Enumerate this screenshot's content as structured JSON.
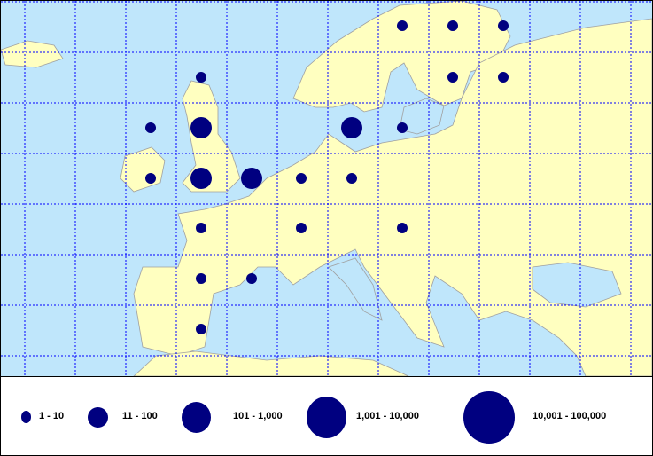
{
  "colors": {
    "sea": "#bfe6fb",
    "land": "#ffffc0",
    "border": "#a0a0a0",
    "grid": "#0000ff",
    "bubble": "#000080"
  },
  "legend": [
    {
      "label": "1 - 10"
    },
    {
      "label": "11 - 100"
    },
    {
      "label": "101 - 1,000"
    },
    {
      "label": "1,001 - 10,000"
    },
    {
      "label": "10,001 - 100,000"
    }
  ],
  "bubble_classes": [
    0,
    0,
    0,
    0,
    0,
    0,
    0,
    2,
    2,
    0,
    0,
    2,
    2,
    0,
    0,
    0,
    0,
    0,
    0,
    0,
    0
  ]
}
